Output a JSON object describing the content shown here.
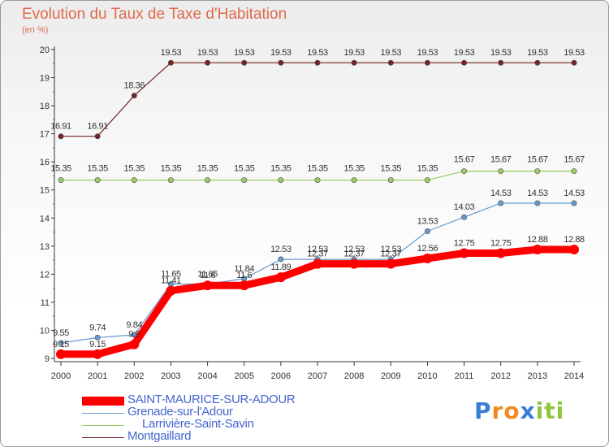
{
  "chart_data": {
    "type": "line",
    "title": "Evolution du Taux de Taxe d'Habitation",
    "subtitle": "(en %)",
    "x": [
      "2000",
      "2001",
      "2002",
      "2003",
      "2004",
      "2005",
      "2006",
      "2007",
      "2008",
      "2009",
      "2010",
      "2011",
      "2012",
      "2013",
      "2014"
    ],
    "ylim": [
      9,
      20
    ],
    "yticks": [
      "9",
      "10",
      "11",
      "12",
      "13",
      "14",
      "15",
      "16",
      "17",
      "18",
      "19",
      "20"
    ],
    "grid": false,
    "legend_position": "bottom-left",
    "series": [
      {
        "name": "SAINT-MAURICE-SUR-ADOUR",
        "color": "#ff0000",
        "values": [
          9.15,
          9.15,
          9.5,
          11.41,
          11.6,
          11.6,
          11.89,
          12.37,
          12.37,
          12.37,
          12.56,
          12.75,
          12.75,
          12.88,
          12.88
        ],
        "labels": [
          "9.15",
          "9.15",
          "9.5",
          "11.41",
          "11.6",
          "11.6",
          "11.89",
          "12.37",
          "12.37",
          "12.37",
          "12.56",
          "12.75",
          "12.75",
          "12.88",
          "12.88"
        ]
      },
      {
        "name": "Grenade-sur-l'Adour",
        "color": "#6699cc",
        "values": [
          9.55,
          9.74,
          9.84,
          11.65,
          11.65,
          11.84,
          12.53,
          12.53,
          12.53,
          12.53,
          13.53,
          14.03,
          14.53,
          14.53,
          14.53
        ],
        "labels": [
          "9.55",
          "9.74",
          "9.84",
          "11.65",
          "11.65",
          "11.84",
          "12.53",
          "12.53",
          "12.53",
          "12.53",
          "13.53",
          "14.03",
          "14.53",
          "14.53",
          "14.53"
        ]
      },
      {
        "name": "Larrivière-Saint-Savin",
        "color": "#99cc66",
        "values": [
          15.35,
          15.35,
          15.35,
          15.35,
          15.35,
          15.35,
          15.35,
          15.35,
          15.35,
          15.35,
          15.35,
          15.67,
          15.67,
          15.67,
          15.67
        ],
        "labels": [
          "15.35",
          "15.35",
          "15.35",
          "15.35",
          "15.35",
          "15.35",
          "15.35",
          "15.35",
          "15.35",
          "15.35",
          "15.35",
          "15.67",
          "15.67",
          "15.67",
          "15.67"
        ]
      },
      {
        "name": "Montgaillard",
        "color": "#772222",
        "values": [
          16.91,
          16.91,
          18.36,
          19.53,
          19.53,
          19.53,
          19.53,
          19.53,
          19.53,
          19.53,
          19.53,
          19.53,
          19.53,
          19.53,
          19.53
        ],
        "labels": [
          "16.91",
          "16.91",
          "18.36",
          "19.53",
          "19.53",
          "19.53",
          "19.53",
          "19.53",
          "19.53",
          "19.53",
          "19.53",
          "19.53",
          "19.53",
          "19.53",
          "19.53"
        ]
      }
    ]
  },
  "logo": {
    "letters": [
      "P",
      "r",
      "o",
      "x",
      "i",
      "t",
      "i"
    ],
    "colors": [
      "#3a7fd5",
      "#f08a24",
      "#f08a24",
      "#3a7fd5",
      "#8cc63e",
      "#8cc63e",
      "#8cc63e"
    ]
  }
}
